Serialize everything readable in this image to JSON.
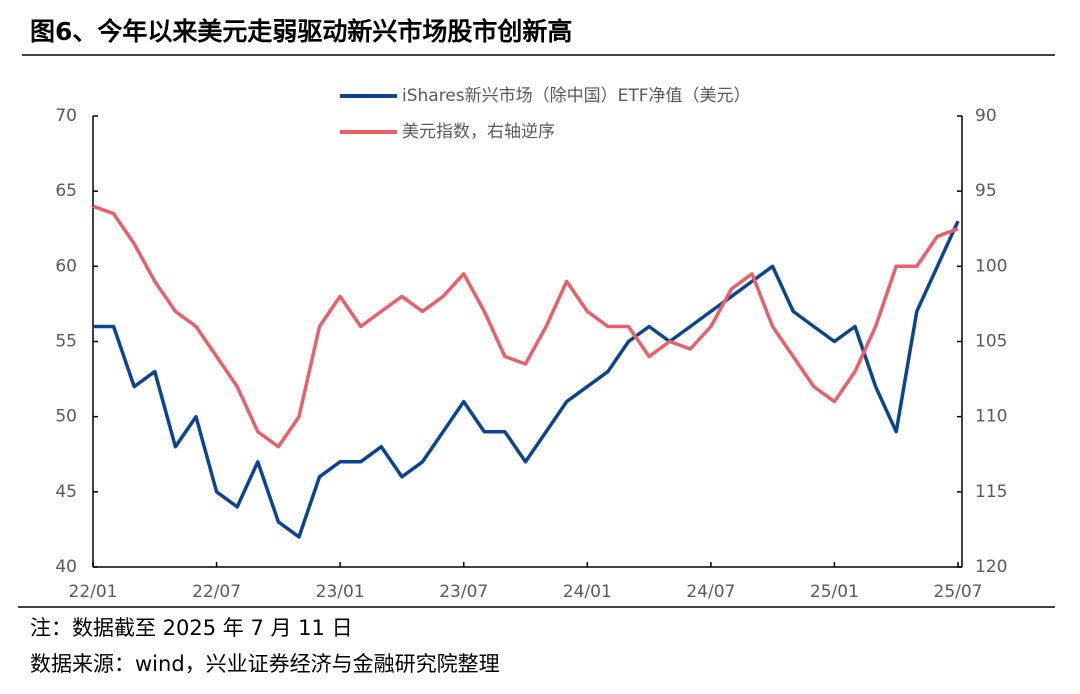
{
  "chart_data": {
    "type": "line",
    "title": "图6、今年以来美元走弱驱动新兴市场股市创新高",
    "categories": [
      "22/01",
      null,
      null,
      null,
      null,
      null,
      "22/07",
      null,
      null,
      null,
      null,
      null,
      "23/01",
      null,
      null,
      null,
      null,
      null,
      "23/07",
      null,
      null,
      null,
      null,
      null,
      "24/01",
      null,
      null,
      null,
      null,
      null,
      "24/07",
      null,
      null,
      null,
      null,
      null,
      "25/01",
      null,
      null,
      null,
      null,
      null,
      "25/07"
    ],
    "series": [
      {
        "name": "iShares新兴市场（除中国）ETF净值（美元）",
        "color": "#0b4592",
        "values": [
          56,
          56,
          52,
          53,
          48,
          50,
          45,
          44,
          47,
          43,
          42,
          46,
          47,
          47,
          48,
          46,
          47,
          49,
          51,
          49,
          49,
          47,
          49,
          51,
          52,
          53,
          55,
          56,
          55,
          56,
          57,
          58,
          59,
          60,
          57,
          56,
          55,
          56,
          52,
          49,
          57,
          60,
          63
        ]
      },
      {
        "name": "美元指数，右轴逆序",
        "color": "#e8606a",
        "axis": "y2",
        "values": [
          96,
          96.5,
          98.5,
          101,
          103,
          104,
          106,
          108,
          111,
          112,
          110,
          104,
          102,
          104,
          103,
          102,
          103,
          102,
          100.5,
          103,
          106,
          106.5,
          104,
          101,
          103,
          104,
          104,
          106,
          105,
          105.5,
          104,
          101.5,
          100.5,
          104,
          106,
          108,
          109,
          107,
          104,
          100,
          100,
          98,
          97.5
        ]
      }
    ],
    "ylim": [
      40,
      70
    ],
    "yticks": [
      40,
      45,
      50,
      55,
      60,
      65,
      70
    ],
    "y2lim": [
      120,
      90
    ],
    "y2ticks": [
      90,
      95,
      100,
      105,
      110,
      115,
      120
    ],
    "legend": "top",
    "notes": [
      "注：数据截至 2025 年 7 月 11 日",
      "数据来源：wind，兴业证券经济与金融研究院整理"
    ]
  }
}
